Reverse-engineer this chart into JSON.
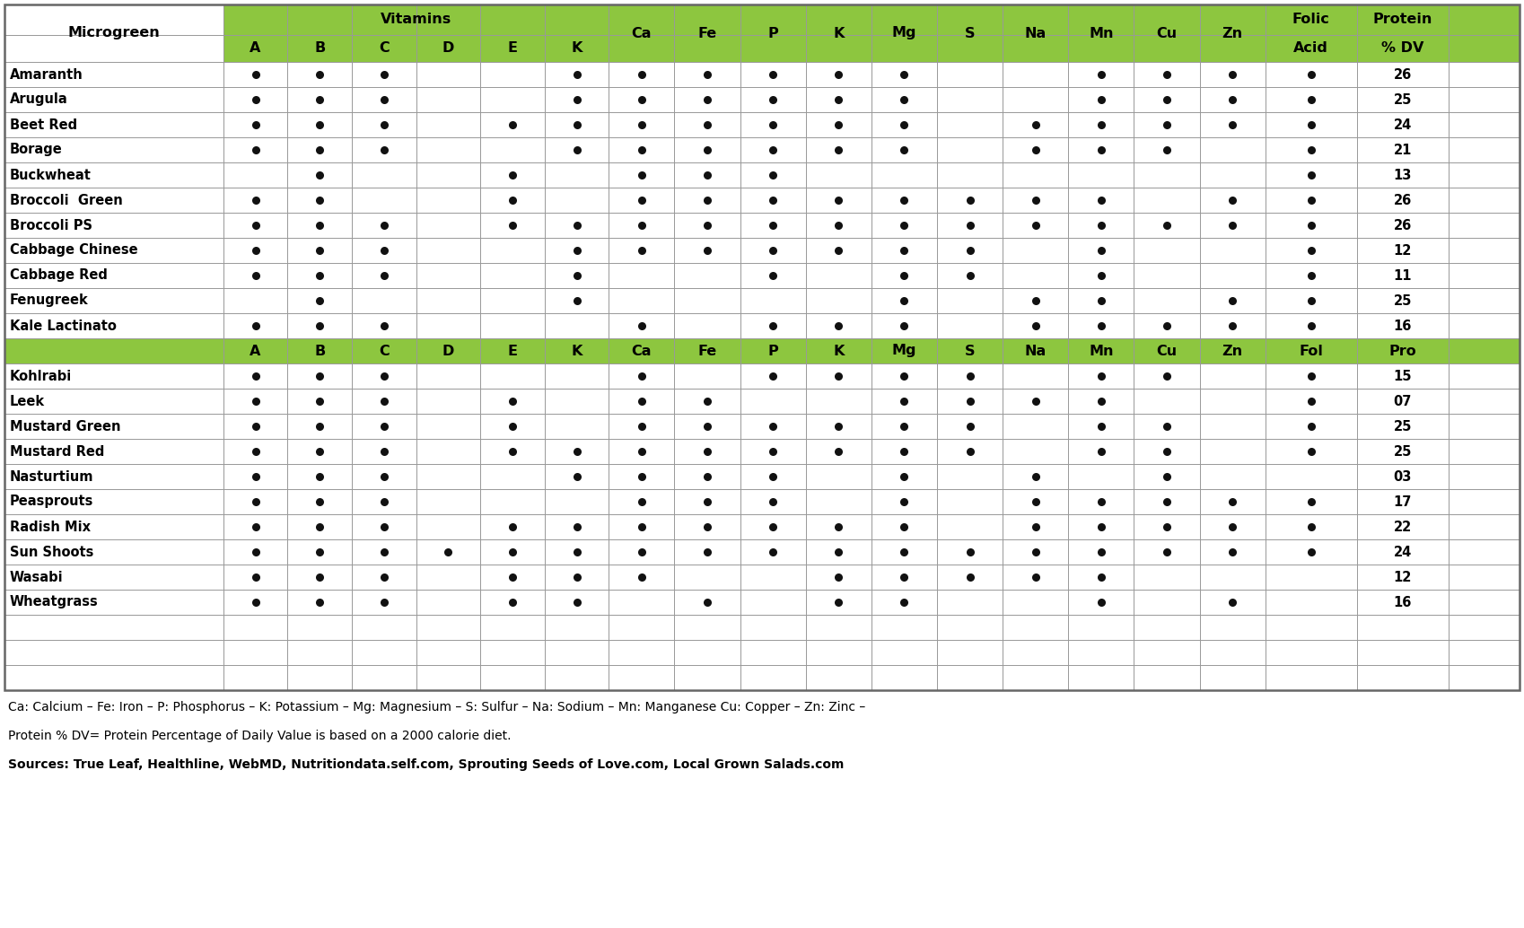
{
  "header_bg": "#8dc63f",
  "white_bg": "#ffffff",
  "dot_color": "#111111",
  "microgreens": [
    {
      "name": "Amaranth",
      "A": 1,
      "B": 1,
      "C": 1,
      "D": 0,
      "E": 0,
      "Kv": 1,
      "Ca": 1,
      "Fe": 1,
      "P": 1,
      "K": 1,
      "Mg": 1,
      "S": 0,
      "Na": 0,
      "Mn": 1,
      "Cu": 1,
      "Zn": 1,
      "Fol": 1,
      "Pro": "26"
    },
    {
      "name": "Arugula",
      "A": 1,
      "B": 1,
      "C": 1,
      "D": 0,
      "E": 0,
      "Kv": 1,
      "Ca": 1,
      "Fe": 1,
      "P": 1,
      "K": 1,
      "Mg": 1,
      "S": 0,
      "Na": 0,
      "Mn": 1,
      "Cu": 1,
      "Zn": 1,
      "Fol": 1,
      "Pro": "25"
    },
    {
      "name": "Beet Red",
      "A": 1,
      "B": 1,
      "C": 1,
      "D": 0,
      "E": 1,
      "Kv": 1,
      "Ca": 1,
      "Fe": 1,
      "P": 1,
      "K": 1,
      "Mg": 1,
      "S": 0,
      "Na": 1,
      "Mn": 1,
      "Cu": 1,
      "Zn": 1,
      "Fol": 1,
      "Pro": "24"
    },
    {
      "name": "Borage",
      "A": 1,
      "B": 1,
      "C": 1,
      "D": 0,
      "E": 0,
      "Kv": 1,
      "Ca": 1,
      "Fe": 1,
      "P": 1,
      "K": 1,
      "Mg": 1,
      "S": 0,
      "Na": 1,
      "Mn": 1,
      "Cu": 1,
      "Zn": 0,
      "Fol": 1,
      "Pro": "21"
    },
    {
      "name": "Buckwheat",
      "A": 0,
      "B": 1,
      "C": 0,
      "D": 0,
      "E": 1,
      "Kv": 0,
      "Ca": 1,
      "Fe": 1,
      "P": 1,
      "K": 0,
      "Mg": 0,
      "S": 0,
      "Na": 0,
      "Mn": 0,
      "Cu": 0,
      "Zn": 0,
      "Fol": 1,
      "Pro": "13"
    },
    {
      "name": "Broccoli  Green",
      "A": 1,
      "B": 1,
      "C": 0,
      "D": 0,
      "E": 1,
      "Kv": 0,
      "Ca": 1,
      "Fe": 1,
      "P": 1,
      "K": 1,
      "Mg": 1,
      "S": 1,
      "Na": 1,
      "Mn": 1,
      "Cu": 0,
      "Zn": 1,
      "Fol": 1,
      "Pro": "26"
    },
    {
      "name": "Broccoli PS",
      "A": 1,
      "B": 1,
      "C": 1,
      "D": 0,
      "E": 1,
      "Kv": 1,
      "Ca": 1,
      "Fe": 1,
      "P": 1,
      "K": 1,
      "Mg": 1,
      "S": 1,
      "Na": 1,
      "Mn": 1,
      "Cu": 1,
      "Zn": 1,
      "Fol": 1,
      "Pro": "26"
    },
    {
      "name": "Cabbage Chinese",
      "A": 1,
      "B": 1,
      "C": 1,
      "D": 0,
      "E": 0,
      "Kv": 1,
      "Ca": 1,
      "Fe": 1,
      "P": 1,
      "K": 1,
      "Mg": 1,
      "S": 1,
      "Na": 0,
      "Mn": 1,
      "Cu": 0,
      "Zn": 0,
      "Fol": 1,
      "Pro": "12"
    },
    {
      "name": "Cabbage Red",
      "A": 1,
      "B": 1,
      "C": 1,
      "D": 0,
      "E": 0,
      "Kv": 1,
      "Ca": 0,
      "Fe": 0,
      "P": 1,
      "K": 0,
      "Mg": 1,
      "S": 1,
      "Na": 0,
      "Mn": 1,
      "Cu": 0,
      "Zn": 0,
      "Fol": 1,
      "Pro": "11"
    },
    {
      "name": "Fenugreek",
      "A": 0,
      "B": 1,
      "C": 0,
      "D": 0,
      "E": 0,
      "Kv": 1,
      "Ca": 0,
      "Fe": 0,
      "P": 0,
      "K": 0,
      "Mg": 1,
      "S": 0,
      "Na": 1,
      "Mn": 1,
      "Cu": 0,
      "Zn": 1,
      "Fol": 1,
      "Pro": "25"
    },
    {
      "name": "Kale Lactinato",
      "A": 1,
      "B": 1,
      "C": 1,
      "D": 0,
      "E": 0,
      "Kv": 0,
      "Ca": 1,
      "Fe": 0,
      "P": 1,
      "K": 1,
      "Mg": 1,
      "S": 0,
      "Na": 1,
      "Mn": 1,
      "Cu": 1,
      "Zn": 1,
      "Fol": 1,
      "Pro": "16"
    }
  ],
  "microgreens2": [
    {
      "name": "Kohlrabi",
      "A": 1,
      "B": 1,
      "C": 1,
      "D": 0,
      "E": 0,
      "Kv": 0,
      "Ca": 1,
      "Fe": 0,
      "P": 1,
      "K": 1,
      "Mg": 1,
      "S": 1,
      "Na": 0,
      "Mn": 1,
      "Cu": 1,
      "Zn": 0,
      "Fol": 1,
      "Pro": "15"
    },
    {
      "name": "Leek",
      "A": 1,
      "B": 1,
      "C": 1,
      "D": 0,
      "E": 1,
      "Kv": 0,
      "Ca": 1,
      "Fe": 1,
      "P": 0,
      "K": 0,
      "Mg": 1,
      "S": 1,
      "Na": 1,
      "Mn": 1,
      "Cu": 0,
      "Zn": 0,
      "Fol": 1,
      "Pro": "07"
    },
    {
      "name": "Mustard Green",
      "A": 1,
      "B": 1,
      "C": 1,
      "D": 0,
      "E": 1,
      "Kv": 0,
      "Ca": 1,
      "Fe": 1,
      "P": 1,
      "K": 1,
      "Mg": 1,
      "S": 1,
      "Na": 0,
      "Mn": 1,
      "Cu": 1,
      "Zn": 0,
      "Fol": 1,
      "Pro": "25"
    },
    {
      "name": "Mustard Red",
      "A": 1,
      "B": 1,
      "C": 1,
      "D": 0,
      "E": 1,
      "Kv": 1,
      "Ca": 1,
      "Fe": 1,
      "P": 1,
      "K": 1,
      "Mg": 1,
      "S": 1,
      "Na": 0,
      "Mn": 1,
      "Cu": 1,
      "Zn": 0,
      "Fol": 1,
      "Pro": "25"
    },
    {
      "name": "Nasturtium",
      "A": 1,
      "B": 1,
      "C": 1,
      "D": 0,
      "E": 0,
      "Kv": 1,
      "Ca": 1,
      "Fe": 1,
      "P": 1,
      "K": 0,
      "Mg": 1,
      "S": 0,
      "Na": 1,
      "Mn": 0,
      "Cu": 1,
      "Zn": 0,
      "Fol": 0,
      "Pro": "03"
    },
    {
      "name": "Peasprouts",
      "A": 1,
      "B": 1,
      "C": 1,
      "D": 0,
      "E": 0,
      "Kv": 0,
      "Ca": 1,
      "Fe": 1,
      "P": 1,
      "K": 0,
      "Mg": 1,
      "S": 0,
      "Na": 1,
      "Mn": 1,
      "Cu": 1,
      "Zn": 1,
      "Fol": 1,
      "Pro": "17"
    },
    {
      "name": "Radish Mix",
      "A": 1,
      "B": 1,
      "C": 1,
      "D": 0,
      "E": 1,
      "Kv": 1,
      "Ca": 1,
      "Fe": 1,
      "P": 1,
      "K": 1,
      "Mg": 1,
      "S": 0,
      "Na": 1,
      "Mn": 1,
      "Cu": 1,
      "Zn": 1,
      "Fol": 1,
      "Pro": "22"
    },
    {
      "name": "Sun Shoots",
      "A": 1,
      "B": 1,
      "C": 1,
      "D": 1,
      "E": 1,
      "Kv": 1,
      "Ca": 1,
      "Fe": 1,
      "P": 1,
      "K": 1,
      "Mg": 1,
      "S": 1,
      "Na": 1,
      "Mn": 1,
      "Cu": 1,
      "Zn": 1,
      "Fol": 1,
      "Pro": "24"
    },
    {
      "name": "Wasabi",
      "A": 1,
      "B": 1,
      "C": 1,
      "D": 0,
      "E": 1,
      "Kv": 1,
      "Ca": 1,
      "Fe": 0,
      "P": 0,
      "K": 1,
      "Mg": 1,
      "S": 1,
      "Na": 1,
      "Mn": 1,
      "Cu": 0,
      "Zn": 0,
      "Fol": 0,
      "Pro": "12"
    },
    {
      "name": "Wheatgrass",
      "A": 1,
      "B": 1,
      "C": 1,
      "D": 0,
      "E": 1,
      "Kv": 1,
      "Ca": 0,
      "Fe": 1,
      "P": 0,
      "K": 1,
      "Mg": 1,
      "S": 0,
      "Na": 0,
      "Mn": 1,
      "Cu": 0,
      "Zn": 1,
      "Fol": 0,
      "Pro": "16"
    }
  ],
  "footnote1": "Ca: Calcium – Fe: Iron – P: Phosphorus – K: Potassium – Mg: Magnesium – S: Sulfur – Na: Sodium – Mn: Manganese Cu: Copper – Zn: Zinc –",
  "footnote2": "Protein % DV= Protein Percentage of Daily Value is based on a 2000 calorie diet.",
  "footnote3": "Sources: True Leaf, Healthline, WebMD, Nutritiondata.self.com, Sprouting Seeds of Love.com, Local Grown Salads.com"
}
